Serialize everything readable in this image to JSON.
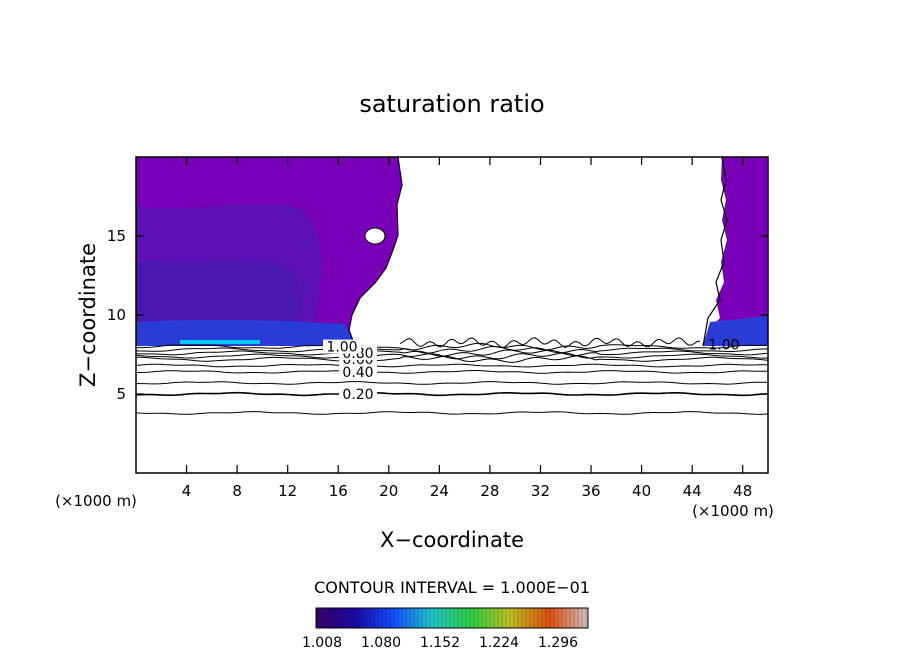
{
  "chart_data": {
    "type": "contour",
    "title": "saturation ratio",
    "xlabel": "X−coordinate",
    "ylabel": "Z−coordinate",
    "x_unit_left": "(×1000 m)",
    "x_unit_right": "(×1000 m)",
    "xlim": [
      0,
      50
    ],
    "ylim": [
      0,
      20
    ],
    "xticks": [
      "4",
      "8",
      "12",
      "16",
      "20",
      "24",
      "28",
      "32",
      "36",
      "40",
      "44",
      "48"
    ],
    "yticks": [
      "5",
      "10",
      "15"
    ],
    "contour_interval_text": "CONTOUR INTERVAL = 1.000E−01",
    "colorbar_labels": [
      "1.008",
      "1.080",
      "1.152",
      "1.224",
      "1.296"
    ],
    "colorbar_colors": [
      "#3a006a",
      "#1a0aa8",
      "#1050ff",
      "#20c8c8",
      "#30d040",
      "#c0c020",
      "#e05010",
      "#d0c0c0"
    ],
    "colormap_fill_colors": {
      "low": "#7a00b8",
      "mid": "#5a14b4",
      "deep": "#3e1aa6",
      "band": "#2a3cd8",
      "band_bright": "#00d0ff"
    },
    "contours": [
      {
        "label": "0.20",
        "z": 5.0
      },
      {
        "label": "0.40",
        "z": 6.4
      },
      {
        "label": "0.60",
        "z": 7.2
      },
      {
        "label": "0.80",
        "z": 7.6
      },
      {
        "label": "1.00",
        "z": 8.0
      }
    ]
  }
}
